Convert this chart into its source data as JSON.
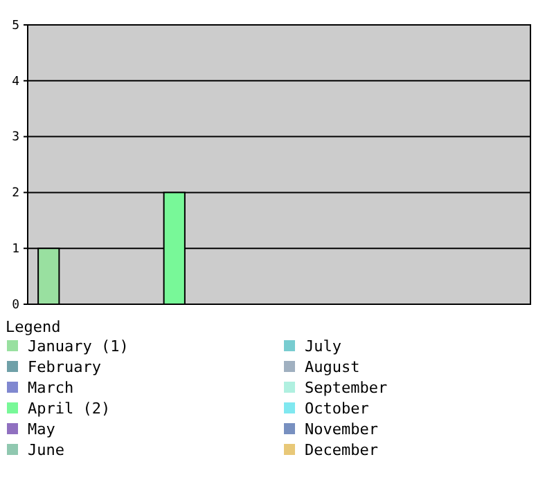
{
  "chart_data": {
    "type": "bar",
    "categories": [
      null,
      null,
      null,
      null,
      null,
      null,
      null,
      null,
      null,
      null,
      null,
      null
    ],
    "ylim": [
      0,
      5
    ],
    "yticks": [
      0,
      1,
      2,
      3,
      4,
      5
    ],
    "grid": "y",
    "legend": "bottom",
    "legend_title": "Legend",
    "series": [
      {
        "name": "January (1)",
        "color": "#99e0a0",
        "values": [
          1,
          null,
          null,
          null,
          null,
          null,
          null,
          null,
          null,
          null,
          null,
          null
        ]
      },
      {
        "name": "February",
        "color": "#6fa0a8",
        "values": [
          null,
          0,
          null,
          null,
          null,
          null,
          null,
          null,
          null,
          null,
          null,
          null
        ]
      },
      {
        "name": "March",
        "color": "#8088d0",
        "values": [
          null,
          null,
          0,
          null,
          null,
          null,
          null,
          null,
          null,
          null,
          null,
          null
        ]
      },
      {
        "name": "April (2)",
        "color": "#78f898",
        "values": [
          null,
          null,
          null,
          2,
          null,
          null,
          null,
          null,
          null,
          null,
          null,
          null
        ]
      },
      {
        "name": "May",
        "color": "#9070c0",
        "values": [
          null,
          null,
          null,
          null,
          0,
          null,
          null,
          null,
          null,
          null,
          null,
          null
        ]
      },
      {
        "name": "June",
        "color": "#90c8b0",
        "values": [
          null,
          null,
          null,
          null,
          null,
          0,
          null,
          null,
          null,
          null,
          null,
          null
        ]
      },
      {
        "name": "July",
        "color": "#78ccd0",
        "values": [
          null,
          null,
          null,
          null,
          null,
          null,
          0,
          null,
          null,
          null,
          null,
          null
        ]
      },
      {
        "name": "August",
        "color": "#a0b0c0",
        "values": [
          null,
          null,
          null,
          null,
          null,
          null,
          null,
          0,
          null,
          null,
          null,
          null
        ]
      },
      {
        "name": "September",
        "color": "#b0f0e0",
        "values": [
          null,
          null,
          null,
          null,
          null,
          null,
          null,
          null,
          0,
          null,
          null,
          null
        ]
      },
      {
        "name": "October",
        "color": "#80e8f0",
        "values": [
          null,
          null,
          null,
          null,
          null,
          null,
          null,
          null,
          null,
          0,
          null,
          null
        ]
      },
      {
        "name": "November",
        "color": "#7890c0",
        "values": [
          null,
          null,
          null,
          null,
          null,
          null,
          null,
          null,
          null,
          null,
          0,
          null
        ]
      },
      {
        "name": "December",
        "color": "#e8c878",
        "values": [
          null,
          null,
          null,
          null,
          null,
          null,
          null,
          null,
          null,
          null,
          null,
          0
        ]
      }
    ]
  }
}
